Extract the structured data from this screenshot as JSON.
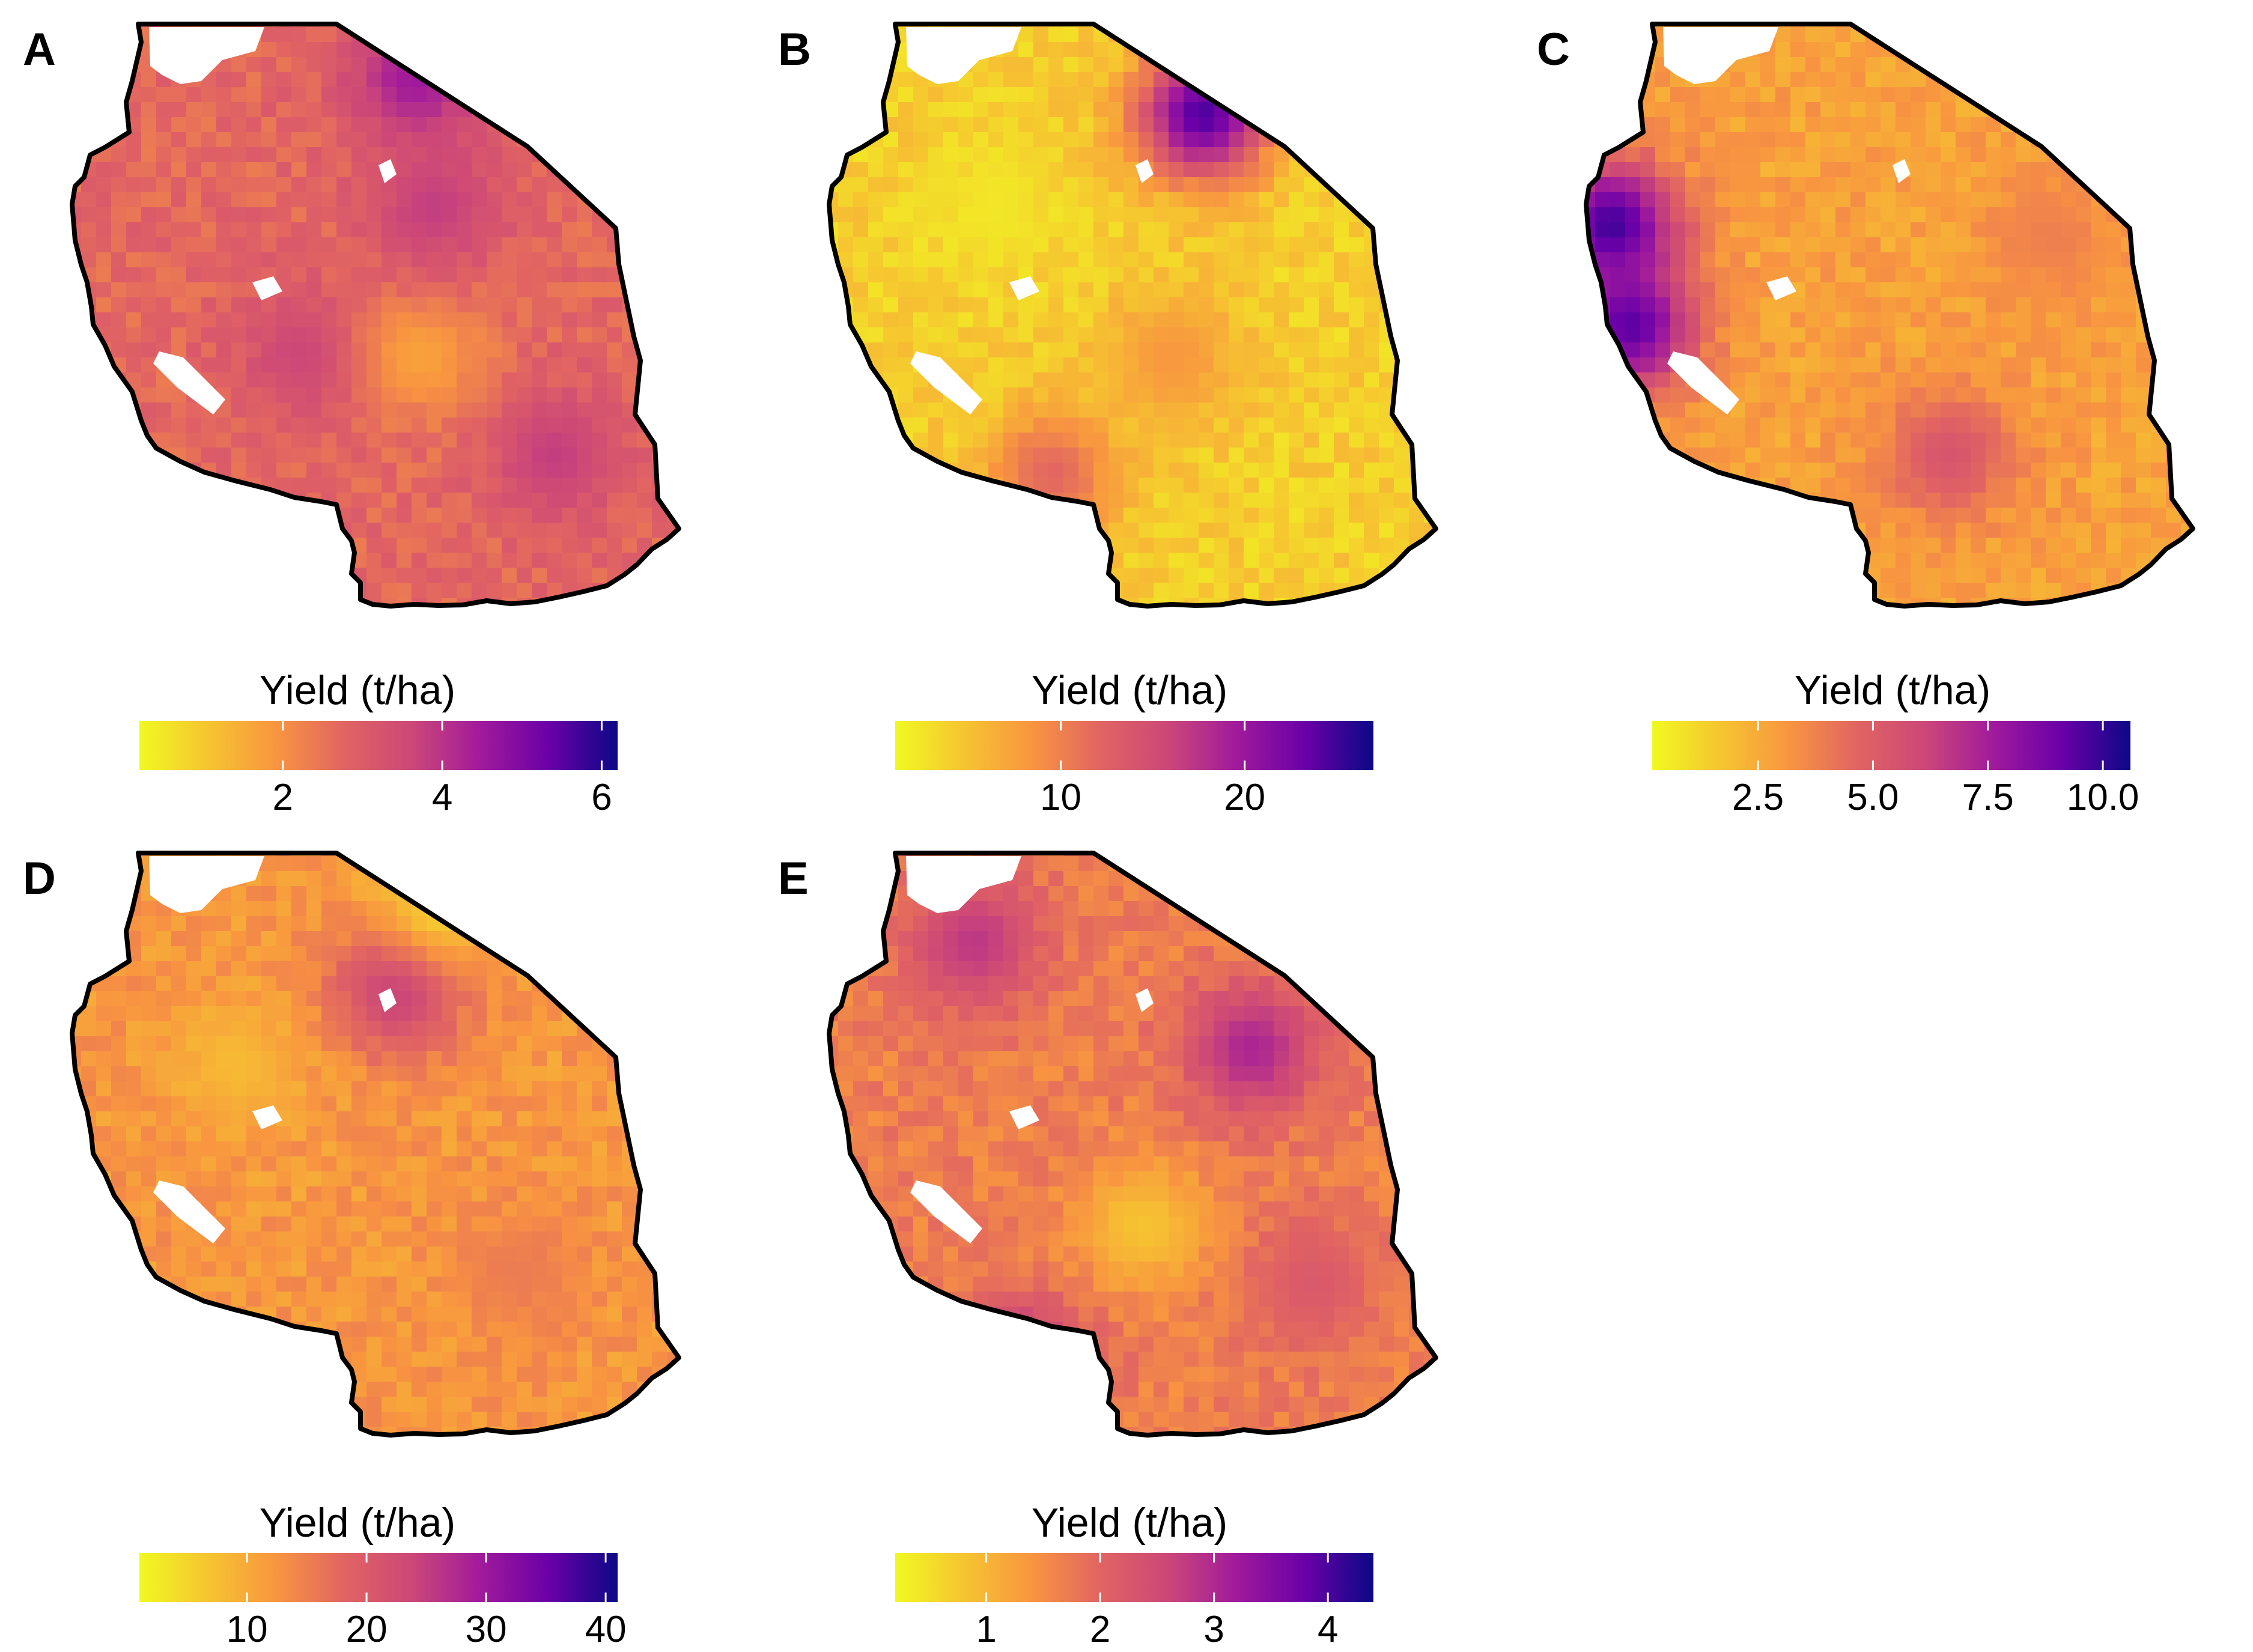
{
  "colors": {
    "background": "#ffffff",
    "border": "#000000",
    "scale": [
      "#f0f921",
      "#f6c530",
      "#f89540",
      "#e16462",
      "#cc4778",
      "#a01a9c",
      "#6a00a8",
      "#0d0887"
    ]
  },
  "panels": [
    {
      "id": "A",
      "letter": "A",
      "legend_title": "Yield (t/ha)",
      "scale_min": 0.2,
      "scale_max": 6.2,
      "ticks": [
        {
          "value": 2,
          "label": "2"
        },
        {
          "value": 4,
          "label": "4"
        },
        {
          "value": 6,
          "label": "6"
        }
      ],
      "base_level": 0.42,
      "hotspots": [
        {
          "u": 0.55,
          "v": 0.08,
          "level": 0.72
        },
        {
          "u": 0.37,
          "v": 0.55,
          "level": 0.58
        },
        {
          "u": 0.78,
          "v": 0.72,
          "level": 0.6
        },
        {
          "u": 0.56,
          "v": 0.55,
          "level": 0.25
        },
        {
          "u": 0.58,
          "v": 0.3,
          "level": 0.6
        }
      ]
    },
    {
      "id": "B",
      "letter": "B",
      "legend_title": "Yield (t/ha)",
      "scale_min": 1,
      "scale_max": 27,
      "ticks": [
        {
          "value": 10,
          "label": "10"
        },
        {
          "value": 20,
          "label": "20"
        }
      ],
      "base_level": 0.12,
      "hotspots": [
        {
          "u": 0.6,
          "v": 0.14,
          "level": 0.9
        },
        {
          "u": 0.35,
          "v": 0.75,
          "level": 0.42
        },
        {
          "u": 0.55,
          "v": 0.55,
          "level": 0.28
        },
        {
          "u": 0.25,
          "v": 0.3,
          "level": 0.05
        }
      ]
    },
    {
      "id": "C",
      "letter": "C",
      "legend_title": "Yield (t/ha)",
      "scale_min": 0.2,
      "scale_max": 10.6,
      "ticks": [
        {
          "value": 2.5,
          "label": "2.5"
        },
        {
          "value": 5.0,
          "label": "5.0"
        },
        {
          "value": 7.5,
          "label": "7.5"
        },
        {
          "value": 10.0,
          "label": "10.0"
        }
      ],
      "base_level": 0.25,
      "hotspots": [
        {
          "u": 0.02,
          "v": 0.33,
          "level": 0.92
        },
        {
          "u": 0.05,
          "v": 0.5,
          "level": 0.88
        },
        {
          "u": 0.58,
          "v": 0.72,
          "level": 0.5
        },
        {
          "u": 0.75,
          "v": 0.35,
          "level": 0.35
        }
      ]
    },
    {
      "id": "D",
      "letter": "D",
      "legend_title": "Yield (t/ha)",
      "scale_min": 1,
      "scale_max": 41,
      "ticks": [
        {
          "value": 10,
          "label": "10"
        },
        {
          "value": 20,
          "label": "20"
        },
        {
          "value": 30,
          "label": "30"
        },
        {
          "value": 40,
          "label": "40"
        }
      ],
      "base_level": 0.28,
      "hotspots": [
        {
          "u": 0.52,
          "v": 0.22,
          "level": 0.6
        },
        {
          "u": 0.6,
          "v": 0.06,
          "level": 0.1
        },
        {
          "u": 0.25,
          "v": 0.35,
          "level": 0.18
        },
        {
          "u": 0.72,
          "v": 0.7,
          "level": 0.36
        }
      ]
    },
    {
      "id": "E",
      "letter": "E",
      "legend_title": "Yield (t/ha)",
      "scale_min": 0.2,
      "scale_max": 4.4,
      "ticks": [
        {
          "value": 1,
          "label": "1"
        },
        {
          "value": 2,
          "label": "2"
        },
        {
          "value": 3,
          "label": "3"
        },
        {
          "value": 4,
          "label": "4"
        }
      ],
      "base_level": 0.35,
      "hotspots": [
        {
          "u": 0.68,
          "v": 0.32,
          "level": 0.68
        },
        {
          "u": 0.22,
          "v": 0.14,
          "level": 0.62
        },
        {
          "u": 0.3,
          "v": 0.85,
          "level": 0.65
        },
        {
          "u": 0.5,
          "v": 0.62,
          "level": 0.15
        },
        {
          "u": 0.78,
          "v": 0.72,
          "level": 0.48
        }
      ]
    }
  ]
}
